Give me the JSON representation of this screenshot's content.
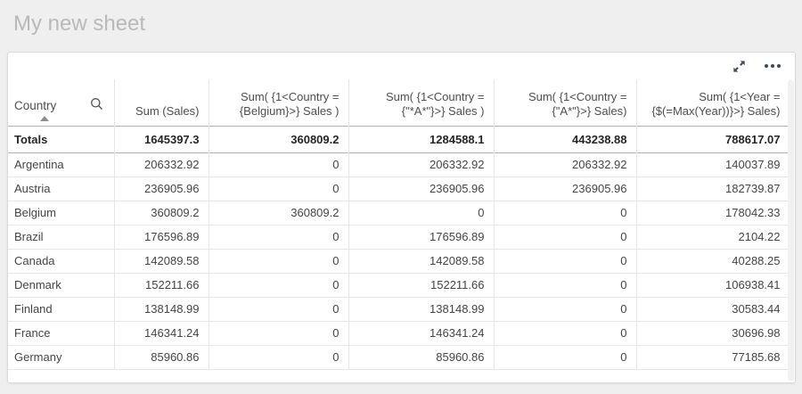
{
  "page": {
    "title": "My new sheet"
  },
  "card": {
    "toolbar": {
      "fullscreen_icon": "fullscreen-expand",
      "more_icon": "more-options"
    }
  },
  "table": {
    "columns": [
      {
        "label": "Country",
        "align": "left",
        "sorted": "ascending",
        "searchable": true
      },
      {
        "label": "Sum (Sales)",
        "align": "right"
      },
      {
        "label": "Sum( {1<Country = {Belgium}>} Sales )",
        "align": "right"
      },
      {
        "label": "Sum( {1<Country = {\"*A*\"}>} Sales )",
        "align": "right"
      },
      {
        "label": "Sum( {1<Country = {\"A*\"}>} Sales)",
        "align": "right"
      },
      {
        "label": "Sum( {1<Year = {$(=Max(Year))}>} Sales)",
        "align": "right"
      }
    ],
    "totals": {
      "label": "Totals",
      "values": [
        "1645397.3",
        "360809.2",
        "1284588.1",
        "443238.88",
        "788617.07"
      ]
    },
    "rows": [
      {
        "country": "Argentina",
        "values": [
          "206332.92",
          "0",
          "206332.92",
          "206332.92",
          "140037.89"
        ]
      },
      {
        "country": "Austria",
        "values": [
          "236905.96",
          "0",
          "236905.96",
          "236905.96",
          "182739.87"
        ]
      },
      {
        "country": "Belgium",
        "values": [
          "360809.2",
          "360809.2",
          "0",
          "0",
          "178042.33"
        ]
      },
      {
        "country": "Brazil",
        "values": [
          "176596.89",
          "0",
          "176596.89",
          "0",
          "2104.22"
        ]
      },
      {
        "country": "Canada",
        "values": [
          "142089.58",
          "0",
          "142089.58",
          "0",
          "40288.25"
        ]
      },
      {
        "country": "Denmark",
        "values": [
          "152211.66",
          "0",
          "152211.66",
          "0",
          "106938.41"
        ]
      },
      {
        "country": "Finland",
        "values": [
          "138148.99",
          "0",
          "138148.99",
          "0",
          "30583.44"
        ]
      },
      {
        "country": "France",
        "values": [
          "146341.24",
          "0",
          "146341.24",
          "0",
          "30696.98"
        ]
      },
      {
        "country": "Germany",
        "values": [
          "85960.86",
          "0",
          "85960.86",
          "0",
          "77185.68"
        ]
      }
    ]
  },
  "colors": {
    "page_background": "#efefef",
    "card_background": "#ffffff",
    "title_text": "#b9b9b9",
    "header_text": "#4d4d4d",
    "body_text": "#444444",
    "divider_light": "#e6e6e6",
    "divider_strong": "#b0b0b0",
    "icon": "#404a54"
  }
}
